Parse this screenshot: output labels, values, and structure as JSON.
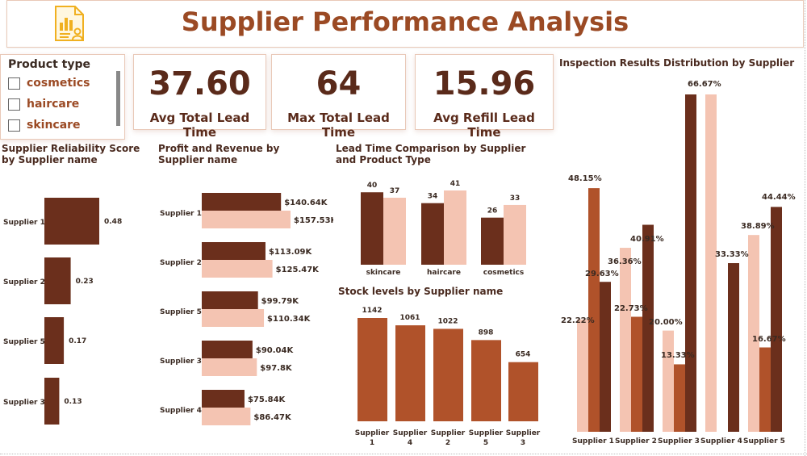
{
  "title": "Supplier Performance Analysis",
  "colors": {
    "dark": "#6b2f1c",
    "mid": "#b0522a",
    "light": "#f4c4b2",
    "title": "#9b4a24"
  },
  "slicer": {
    "title": "Product type",
    "items": [
      "cosmetics",
      "haircare",
      "skincare"
    ]
  },
  "kpis": [
    {
      "value": "37.60",
      "label": "Avg Total Lead Time"
    },
    {
      "value": "64",
      "label": "Max Total Lead Time"
    },
    {
      "value": "15.96",
      "label": "Avg Refill Lead Time"
    }
  ],
  "chart_titles": {
    "reliability": "Supplier Reliability Score by Supplier name",
    "profit": "Profit and Revenue by Supplier name",
    "lead": "Lead Time Comparison by Supplier and Product Type",
    "stock": "Stock levels by Supplier name",
    "inspection": "Inspection Results Distribution by Supplier"
  },
  "chart_data": [
    {
      "id": "reliability",
      "type": "bar",
      "orientation": "horizontal",
      "title": "Supplier Reliability Score by Supplier name",
      "categories": [
        "Supplier 1",
        "Supplier 2",
        "Supplier 5",
        "Supplier 3"
      ],
      "values": [
        0.48,
        0.23,
        0.17,
        0.13
      ],
      "labels": [
        "0.48",
        "0.23",
        "0.17",
        "0.13"
      ]
    },
    {
      "id": "profit",
      "type": "bar",
      "orientation": "horizontal",
      "title": "Profit and Revenue by Supplier name",
      "categories": [
        "Supplier 1",
        "Supplier 2",
        "Supplier 5",
        "Supplier 3",
        "Supplier 4"
      ],
      "series": [
        {
          "values": [
            140.64,
            113.09,
            99.79,
            90.04,
            75.84
          ],
          "labels": [
            "$140.64K",
            "$113.09K",
            "$99.79K",
            "$90.04K",
            "$75.84K"
          ]
        },
        {
          "values": [
            157.53,
            125.47,
            110.34,
            97.8,
            86.47
          ],
          "labels": [
            "$157.53K",
            "$125.47K",
            "$110.34K",
            "$97.8K",
            "$86.47K"
          ]
        }
      ]
    },
    {
      "id": "lead",
      "type": "bar",
      "title": "Lead Time Comparison by Supplier and Product Type",
      "categories": [
        "skincare",
        "haircare",
        "cosmetics"
      ],
      "series": [
        {
          "values": [
            40,
            34,
            26
          ]
        },
        {
          "values": [
            37,
            41,
            33
          ]
        }
      ]
    },
    {
      "id": "stock",
      "type": "bar",
      "title": "Stock levels by Supplier name",
      "categories": [
        "Supplier 1",
        "Supplier 4",
        "Supplier 2",
        "Supplier 5",
        "Supplier 3"
      ],
      "values": [
        1142,
        1061,
        1022,
        898,
        654
      ]
    },
    {
      "id": "inspection",
      "type": "bar",
      "title": "Inspection Results Distribution by Supplier",
      "categories": [
        "Supplier 1",
        "Supplier 2",
        "Supplier 3",
        "Supplier 4",
        "Supplier 5"
      ],
      "series": [
        {
          "values": [
            22.22,
            36.36,
            20.0,
            66.67,
            38.89
          ],
          "labels": [
            "22.22%",
            "36.36%",
            "20.00%",
            "66.67%",
            "38.89%"
          ]
        },
        {
          "values": [
            48.15,
            22.73,
            13.33,
            null,
            16.67
          ],
          "labels": [
            "48.15%",
            "22.73%",
            "13.33%",
            "",
            "16.67%"
          ]
        },
        {
          "values": [
            29.63,
            40.91,
            66.67,
            33.33,
            44.44
          ],
          "labels": [
            "29.63%",
            "40.91%",
            "",
            "33.33%",
            "44.44%"
          ]
        }
      ]
    }
  ]
}
